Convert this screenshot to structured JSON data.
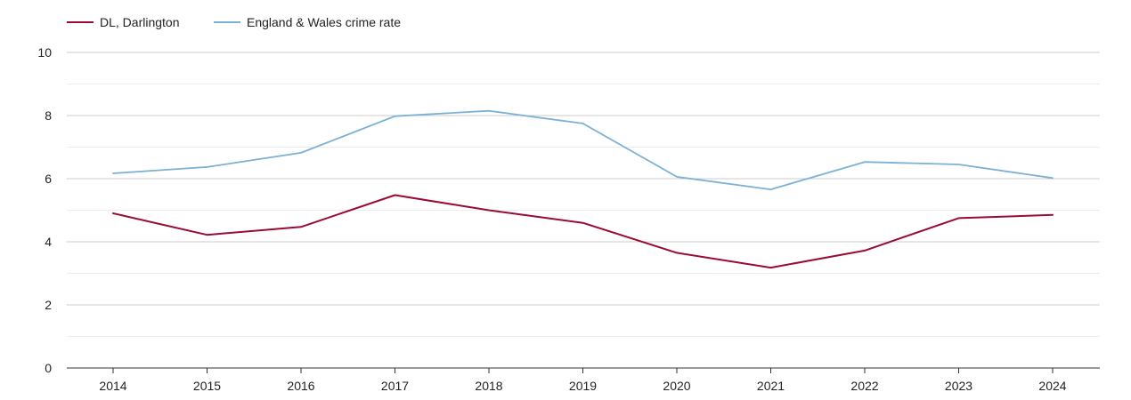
{
  "chart_data": {
    "type": "line",
    "title": "",
    "xlabel": "",
    "ylabel": "",
    "x": [
      "2014",
      "2015",
      "2016",
      "2017",
      "2018",
      "2019",
      "2020",
      "2021",
      "2022",
      "2023",
      "2024"
    ],
    "ylim": [
      0,
      10
    ],
    "y_ticks": [
      "0",
      "2",
      "4",
      "6",
      "8",
      "10"
    ],
    "grid": true,
    "legend_position": "top-left",
    "series": [
      {
        "name": "DL, Darlington",
        "color": "#9b0a33",
        "values": [
          4.9,
          4.22,
          4.47,
          5.48,
          5.0,
          4.6,
          3.65,
          3.18,
          3.72,
          4.75,
          4.85
        ]
      },
      {
        "name": "England & Wales crime rate",
        "color": "#7ab1d4",
        "values": [
          6.17,
          6.37,
          6.82,
          7.98,
          8.15,
          7.75,
          6.06,
          5.66,
          6.53,
          6.45,
          6.02
        ]
      }
    ]
  }
}
